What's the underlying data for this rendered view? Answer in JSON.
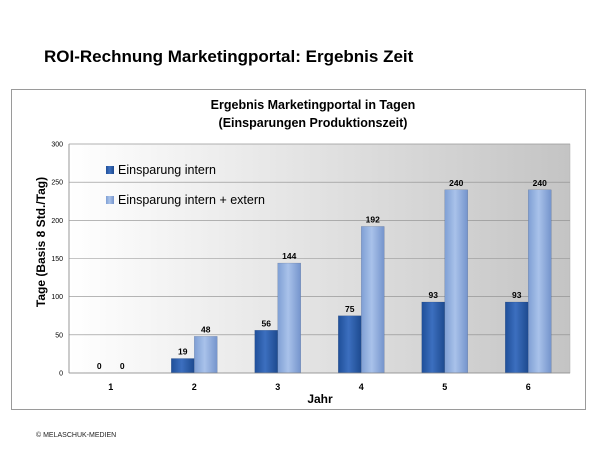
{
  "slide": {
    "title": "ROI-Rechnung Marketingportal: Ergebnis Zeit",
    "copyright": "© MELASCHUK-MEDIEN"
  },
  "chart_data": {
    "type": "bar",
    "title": "Ergebnis Marketingportal in Tagen",
    "subtitle": "(Einsparungen Produktionszeit)",
    "xlabel": "Jahr",
    "ylabel": "Tage (Basis 8 Std./Tag)",
    "categories": [
      "1",
      "2",
      "3",
      "4",
      "5",
      "6"
    ],
    "ylim": [
      0,
      300
    ],
    "yticks": [
      0,
      50,
      100,
      150,
      200,
      250,
      300
    ],
    "grid": true,
    "legend_position": "top-left",
    "series": [
      {
        "name": "Einsparung intern",
        "values": [
          0,
          19,
          56,
          75,
          93,
          93
        ],
        "color": "#2f5fa8"
      },
      {
        "name": "Einsparung intern + extern",
        "values": [
          0,
          48,
          144,
          192,
          240,
          240
        ],
        "color": "#93b1e0"
      }
    ],
    "plot_background": "#c8c8c8"
  }
}
